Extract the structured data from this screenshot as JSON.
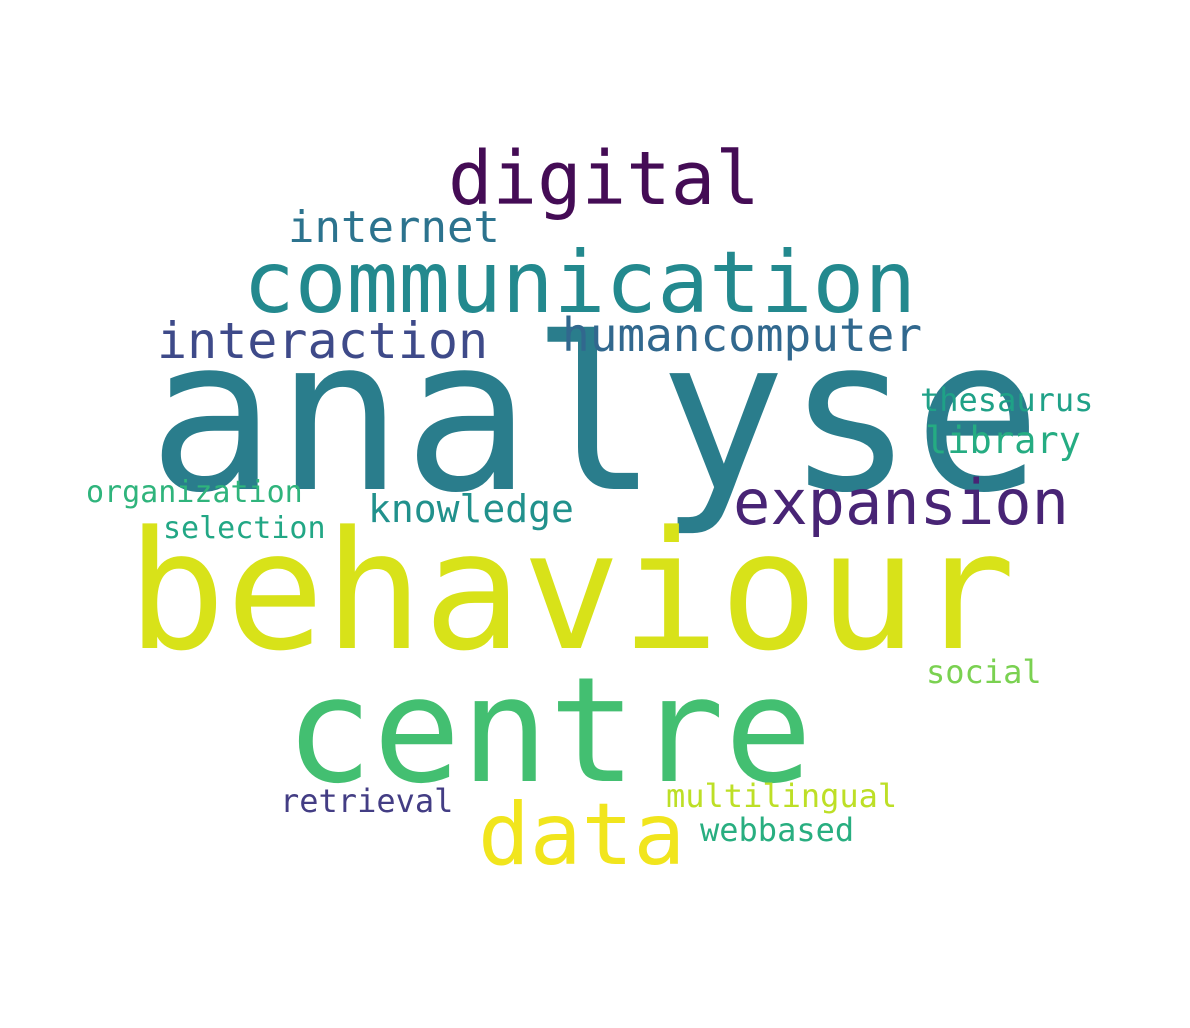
{
  "words": {
    "analyse": {
      "text": "analyse",
      "color": "#2a7d8c"
    },
    "behaviour": {
      "text": "behaviour",
      "color": "#d8e219"
    },
    "centre": {
      "text": "centre",
      "color": "#43bf71"
    },
    "communication": {
      "text": "communication",
      "color": "#23898e"
    },
    "digital": {
      "text": "digital",
      "color": "#440c55"
    },
    "data": {
      "text": "data",
      "color": "#f1e51d"
    },
    "expansion": {
      "text": "expansion",
      "color": "#482475"
    },
    "humancomputer": {
      "text": "humancomputer",
      "color": "#31688e"
    },
    "interaction": {
      "text": "interaction",
      "color": "#3e4a89"
    },
    "internet": {
      "text": "internet",
      "color": "#2c738e"
    },
    "knowledge": {
      "text": "knowledge",
      "color": "#21918c"
    },
    "library": {
      "text": "library",
      "color": "#25ac82"
    },
    "thesaurus": {
      "text": "thesaurus",
      "color": "#1fa187"
    },
    "organization": {
      "text": "organization",
      "color": "#2fb47c"
    },
    "selection": {
      "text": "selection",
      "color": "#22a785"
    },
    "social": {
      "text": "social",
      "color": "#7ad151"
    },
    "retrieval": {
      "text": "retrieval",
      "color": "#433d84"
    },
    "multilingual": {
      "text": "multilingual",
      "color": "#bddf26"
    },
    "webbased": {
      "text": "webbased",
      "color": "#28ae80"
    }
  }
}
